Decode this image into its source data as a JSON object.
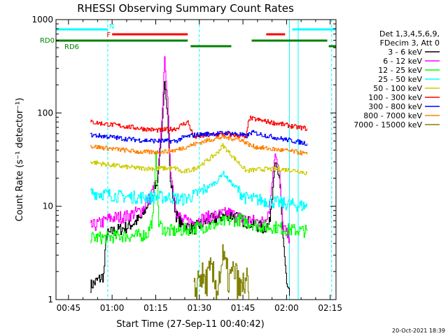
{
  "chart_data": {
    "type": "line",
    "title": "RHESSI Observing Summary Count Rates",
    "xlabel": "Start Time (27-Sep-11 00:40:42)",
    "ylabel": "Count Rate (s⁻¹ detector⁻¹)",
    "yscale": "log",
    "xlim_minutes": [
      40.7,
      137.0
    ],
    "ylim": [
      1,
      1000
    ],
    "x_ticks": [
      {
        "t": 45,
        "label": "00:45"
      },
      {
        "t": 60,
        "label": "01:00"
      },
      {
        "t": 75,
        "label": "01:15"
      },
      {
        "t": 90,
        "label": "01:30"
      },
      {
        "t": 105,
        "label": "01:45"
      },
      {
        "t": 120,
        "label": "02:00"
      },
      {
        "t": 135,
        "label": "02:15"
      }
    ],
    "x_minor_ticks": [
      40,
      50,
      55,
      65,
      70,
      80,
      85,
      95,
      100,
      110,
      115,
      125,
      130
    ],
    "y_ticks": [
      {
        "v": 1,
        "label": "1"
      },
      {
        "v": 10,
        "label": "10"
      },
      {
        "v": 100,
        "label": "100"
      },
      {
        "v": 1000,
        "label": "1000"
      }
    ],
    "legend": {
      "header": [
        "Det 1,3,4,5,6,9,",
        "FDecim 3, Att 0"
      ],
      "position": "right"
    },
    "series": [
      {
        "name": "3 - 6 keV",
        "color": "#000000",
        "points": [
          [
            52.5,
            1.4
          ],
          [
            57,
            1.8
          ],
          [
            58,
            4.9
          ],
          [
            60,
            5.3
          ],
          [
            65,
            6.0
          ],
          [
            70,
            7.5
          ],
          [
            73,
            12.0
          ],
          [
            75.5,
            18.0
          ],
          [
            77,
            60
          ],
          [
            78,
            230
          ],
          [
            79,
            95
          ],
          [
            80,
            18
          ],
          [
            82,
            8
          ],
          [
            84,
            6.2
          ],
          [
            88,
            5.8
          ],
          [
            92,
            6.8
          ],
          [
            96,
            7.5
          ],
          [
            100,
            8.2
          ],
          [
            104,
            7.2
          ],
          [
            108,
            6.5
          ],
          [
            112,
            5.8
          ],
          [
            114,
            6.5
          ],
          [
            116,
            30
          ],
          [
            117.5,
            19
          ],
          [
            118.5,
            6.0
          ],
          [
            120,
            1.4
          ],
          [
            121,
            1.1
          ]
        ]
      },
      {
        "name": "6 - 12 keV",
        "color": "#ff00ff",
        "points": [
          [
            52.5,
            6.0
          ],
          [
            57,
            6.8
          ],
          [
            58,
            7.2
          ],
          [
            60,
            7.5
          ],
          [
            65,
            7.8
          ],
          [
            70,
            9.0
          ],
          [
            73,
            12.5
          ],
          [
            75.5,
            20
          ],
          [
            77,
            80
          ],
          [
            78,
            380
          ],
          [
            79,
            140
          ],
          [
            80,
            24
          ],
          [
            82,
            9
          ],
          [
            84,
            7.0
          ],
          [
            88,
            6.8
          ],
          [
            92,
            7.5
          ],
          [
            96,
            8.0
          ],
          [
            100,
            8.5
          ],
          [
            104,
            7.5
          ],
          [
            108,
            7.0
          ],
          [
            112,
            6.8
          ],
          [
            114,
            9.5
          ],
          [
            116,
            38
          ],
          [
            117.5,
            23
          ],
          [
            118.5,
            6.5
          ],
          [
            120,
            5.0
          ],
          [
            121,
            4.6
          ]
        ]
      },
      {
        "name": "12 - 25 keV",
        "color": "#00ff00",
        "points": [
          [
            52.5,
            4.6
          ],
          [
            58,
            4.6
          ],
          [
            62,
            4.8
          ],
          [
            68,
            4.8
          ],
          [
            72,
            5.0
          ],
          [
            74,
            7.5
          ],
          [
            75,
            40
          ],
          [
            76,
            6.5
          ],
          [
            78,
            5.5
          ],
          [
            82,
            5.4
          ],
          [
            88,
            5.8
          ],
          [
            94,
            6.2
          ],
          [
            100,
            7.0
          ],
          [
            104,
            7.2
          ],
          [
            108,
            6.5
          ],
          [
            112,
            6.0
          ],
          [
            116,
            6.0
          ],
          [
            120,
            5.6
          ],
          [
            124,
            5.5
          ],
          [
            127,
            5.4
          ]
        ]
      },
      {
        "name": "25 - 50 keV",
        "color": "#00ffff",
        "points": [
          [
            52.5,
            14
          ],
          [
            58,
            13.5
          ],
          [
            62,
            12.8
          ],
          [
            68,
            12.5
          ],
          [
            74,
            12.5
          ],
          [
            80,
            12.5
          ],
          [
            84,
            11.8
          ],
          [
            88,
            13.0
          ],
          [
            92,
            15.5
          ],
          [
            96,
            18.5
          ],
          [
            98,
            23.0
          ],
          [
            100,
            19.0
          ],
          [
            104,
            14.0
          ],
          [
            106,
            12.2
          ],
          [
            112,
            11.5
          ],
          [
            118,
            10.8
          ],
          [
            124,
            10.2
          ],
          [
            127,
            10.0
          ]
        ]
      },
      {
        "name": "50 - 100 keV",
        "color": "#cccc00",
        "points": [
          [
            52.5,
            30
          ],
          [
            58,
            28
          ],
          [
            64,
            26.5
          ],
          [
            70,
            25.5
          ],
          [
            76,
            25.5
          ],
          [
            82,
            25.5
          ],
          [
            84,
            23.0
          ],
          [
            88,
            25.0
          ],
          [
            92,
            30.0
          ],
          [
            96,
            37.0
          ],
          [
            98,
            45.0
          ],
          [
            100,
            38.0
          ],
          [
            104,
            28.0
          ],
          [
            106,
            24.0
          ],
          [
            112,
            25.0
          ],
          [
            118,
            25.0
          ],
          [
            124,
            24.0
          ],
          [
            127,
            22.5
          ]
        ]
      },
      {
        "name": "100 - 300 keV",
        "color": "#ff0000",
        "points": [
          [
            52.5,
            80
          ],
          [
            58,
            76
          ],
          [
            64,
            72
          ],
          [
            70,
            68
          ],
          [
            76,
            65
          ],
          [
            82,
            68
          ],
          [
            84,
            75
          ],
          [
            86,
            80
          ],
          [
            88,
            55
          ],
          [
            94,
            58
          ],
          [
            100,
            59
          ],
          [
            104,
            57
          ],
          [
            106,
            54
          ],
          [
            107,
            88
          ],
          [
            112,
            82
          ],
          [
            118,
            76
          ],
          [
            124,
            70
          ],
          [
            127,
            68
          ]
        ]
      },
      {
        "name": "300 - 800 keV",
        "color": "#0000ff",
        "points": [
          [
            52.5,
            58
          ],
          [
            58,
            56
          ],
          [
            64,
            53
          ],
          [
            70,
            51
          ],
          [
            76,
            50
          ],
          [
            82,
            50
          ],
          [
            84,
            54
          ],
          [
            86,
            56
          ],
          [
            88,
            58
          ],
          [
            94,
            60
          ],
          [
            100,
            61
          ],
          [
            104,
            59
          ],
          [
            106,
            56
          ],
          [
            108,
            62
          ],
          [
            112,
            58
          ],
          [
            118,
            53
          ],
          [
            124,
            49
          ],
          [
            127,
            47
          ]
        ]
      },
      {
        "name": "800 - 7000 keV",
        "color": "#ff8000",
        "points": [
          [
            52.5,
            44
          ],
          [
            58,
            42
          ],
          [
            64,
            40
          ],
          [
            70,
            38
          ],
          [
            76,
            38
          ],
          [
            82,
            40
          ],
          [
            86,
            44
          ],
          [
            90,
            48
          ],
          [
            94,
            52
          ],
          [
            98,
            55
          ],
          [
            100,
            54
          ],
          [
            104,
            52
          ],
          [
            106,
            48
          ],
          [
            108,
            44
          ],
          [
            112,
            42
          ],
          [
            118,
            40
          ],
          [
            124,
            38
          ],
          [
            127,
            36
          ]
        ]
      },
      {
        "name": "7000 - 15000 keV",
        "color": "#808000",
        "points": [
          [
            88,
            1.1
          ],
          [
            90,
            1.9
          ],
          [
            92,
            1.5
          ],
          [
            94,
            2.0
          ],
          [
            96,
            1.3
          ],
          [
            98,
            2.8
          ],
          [
            100,
            1.6
          ],
          [
            102,
            2.0
          ],
          [
            104,
            1.2
          ],
          [
            106,
            1.7
          ],
          [
            107,
            1.0
          ]
        ]
      }
    ],
    "annotations": {
      "flag_rows": [
        {
          "label": "N",
          "color": "#00ffff",
          "row": "top",
          "spans": [
            [
              40.7,
              58.5
            ],
            [
              122,
              137
            ]
          ]
        },
        {
          "label": "F",
          "color": "#ff0000",
          "row": "middle",
          "spans": [
            [
              60,
              86
            ],
            [
              113,
              119.5
            ]
          ]
        },
        {
          "label": "RD0",
          "color": "#008000",
          "row": "upper-green",
          "spans": [
            [
              40.7,
              86
            ],
            [
              108,
              134
            ]
          ]
        },
        {
          "label": "RD6",
          "color": "#008000",
          "row": "lower-green",
          "spans": [
            [
              87,
              101
            ],
            [
              134.5,
              137
            ]
          ]
        }
      ],
      "vertical_lines": [
        {
          "t": 58.5,
          "color": "#00ffff",
          "style": "dashed"
        },
        {
          "t": 90,
          "color": "#00ffff",
          "style": "dashed"
        },
        {
          "t": 121,
          "color": "#00ffff",
          "style": "solid"
        },
        {
          "t": 124,
          "color": "#00ffff",
          "style": "solid"
        },
        {
          "t": 135.5,
          "color": "#00ffff",
          "style": "dashed"
        }
      ]
    },
    "footer_timestamp": "20-Oct-2021 18:39"
  }
}
